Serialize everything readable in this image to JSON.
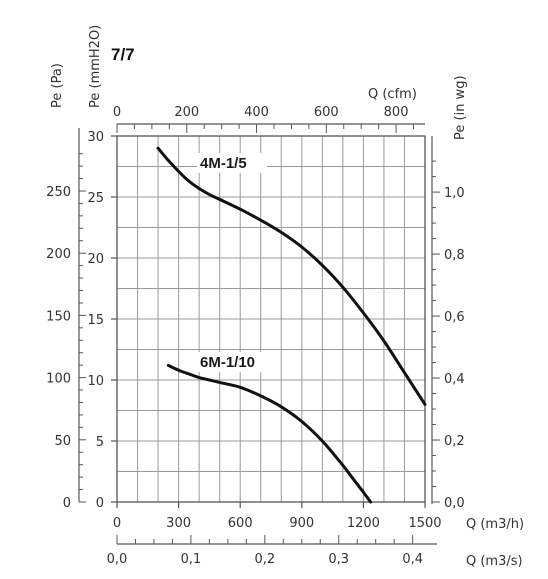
{
  "page_title": "7/7",
  "colors": {
    "axis": "#555555",
    "grid": "#9a9a9a",
    "curve": "#111111",
    "text": "#333333"
  },
  "chart_data": {
    "type": "line",
    "title": "7/7",
    "x_primary": {
      "label": "Q (m3/h)",
      "range": [
        0,
        1500
      ],
      "ticks": [
        "0",
        "300",
        "600",
        "900",
        "1200",
        "1500"
      ]
    },
    "x_top": {
      "label": "Q (cfm)",
      "range": [
        0,
        882.9
      ],
      "ticks": [
        "0",
        "200",
        "400",
        "600",
        "800"
      ]
    },
    "x_bottom": {
      "label": "Q (m3/s)",
      "range": [
        0,
        0.4167
      ],
      "ticks": [
        "0,0",
        "0,1",
        "0,2",
        "0,3",
        "0,4"
      ]
    },
    "y_primary": {
      "label": "Pe (mmH2O)",
      "range": [
        0,
        30
      ],
      "ticks": [
        "0",
        "5",
        "10",
        "15",
        "20",
        "25",
        "30"
      ]
    },
    "y_pa": {
      "label": "Pe (Pa)",
      "range": [
        0,
        294.2
      ],
      "ticks": [
        "0",
        "50",
        "100",
        "150",
        "200",
        "250"
      ]
    },
    "y_inwg": {
      "label": "Pe (in wg)",
      "range": [
        0,
        1.181
      ],
      "ticks": [
        "0,0",
        "0,2",
        "0,4",
        "0,6",
        "0,8",
        "1,0"
      ]
    },
    "grid": true,
    "series": [
      {
        "name": "4M-1/5",
        "x": [
          200,
          250,
          300,
          350,
          400,
          450,
          500,
          600,
          700,
          800,
          900,
          1000,
          1100,
          1200,
          1300,
          1400,
          1500
        ],
        "y": [
          29.0,
          28.0,
          27.1,
          26.3,
          25.7,
          25.2,
          24.8,
          24.0,
          23.1,
          22.1,
          20.9,
          19.4,
          17.6,
          15.5,
          13.2,
          10.6,
          8.0
        ]
      },
      {
        "name": "6M-1/10",
        "x": [
          250,
          300,
          350,
          400,
          450,
          500,
          600,
          700,
          800,
          900,
          1000,
          1100,
          1150,
          1200,
          1235
        ],
        "y": [
          11.2,
          10.8,
          10.5,
          10.2,
          10.0,
          9.8,
          9.4,
          8.7,
          7.8,
          6.6,
          5.0,
          3.0,
          1.9,
          0.8,
          0.0
        ]
      }
    ]
  }
}
